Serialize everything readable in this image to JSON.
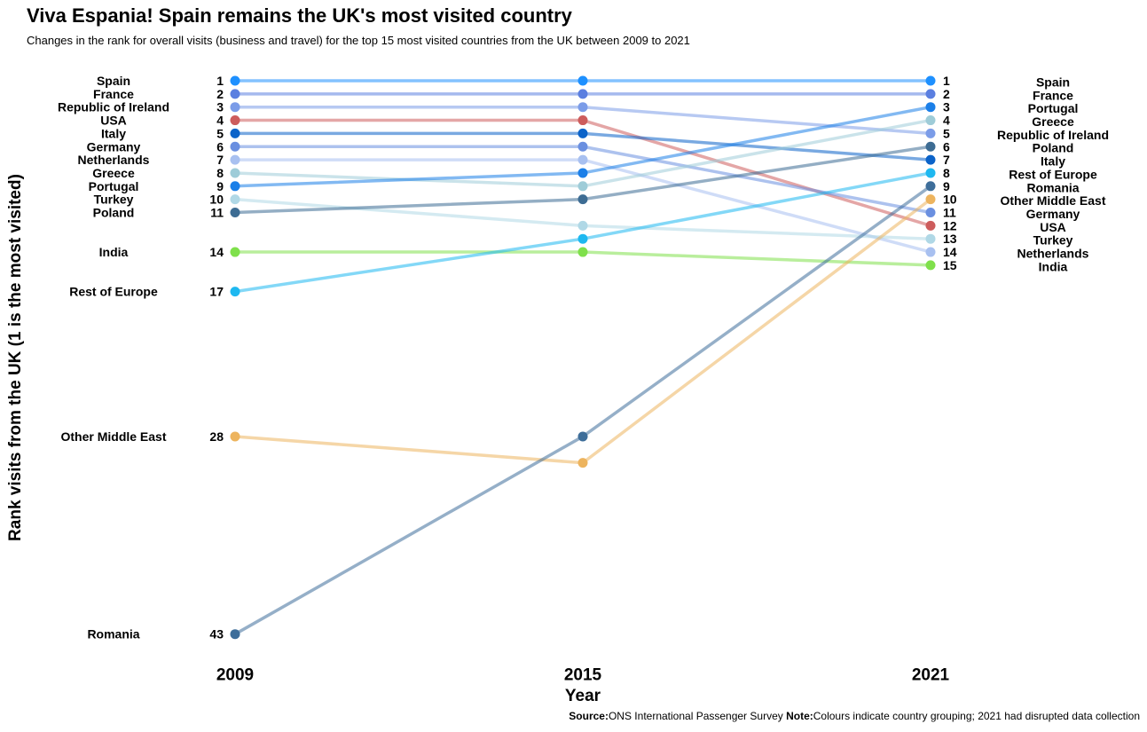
{
  "chart_data": {
    "type": "line",
    "title": "Viva Espania! Spain remains the UK's most visited country",
    "subtitle": "Changes in the rank for overall visits (business and travel) for the top 15 most visited countries from the UK between 2009 to 2021",
    "xlabel": "Year",
    "ylabel": "Rank visits from the UK (1 is the most visited)",
    "x": [
      "2009",
      "2015",
      "2021"
    ],
    "y_reversed": true,
    "grid": false,
    "series": [
      {
        "name": "Spain",
        "values": [
          1,
          1,
          1
        ],
        "color": "#1E90FF"
      },
      {
        "name": "France",
        "values": [
          2,
          2,
          2
        ],
        "color": "#5B7FE0"
      },
      {
        "name": "Republic of Ireland",
        "values": [
          3,
          3,
          5
        ],
        "color": "#7B9CE8"
      },
      {
        "name": "USA",
        "values": [
          4,
          4,
          12
        ],
        "color": "#CD5C5C"
      },
      {
        "name": "Italy",
        "values": [
          5,
          5,
          7
        ],
        "color": "#0B63C9"
      },
      {
        "name": "Germany",
        "values": [
          6,
          6,
          11
        ],
        "color": "#6A8FE0"
      },
      {
        "name": "Netherlands",
        "values": [
          7,
          7,
          14
        ],
        "color": "#A8C0F0"
      },
      {
        "name": "Greece",
        "values": [
          8,
          9,
          4
        ],
        "color": "#9ECCD8"
      },
      {
        "name": "Portugal",
        "values": [
          9,
          8,
          3
        ],
        "color": "#1B7FE8"
      },
      {
        "name": "Turkey",
        "values": [
          10,
          12,
          13
        ],
        "color": "#B0D8E6"
      },
      {
        "name": "Poland",
        "values": [
          11,
          10,
          6
        ],
        "color": "#3D6C93"
      },
      {
        "name": "India",
        "values": [
          14,
          14,
          15
        ],
        "color": "#7FE04B"
      },
      {
        "name": "Rest of Europe",
        "values": [
          17,
          13,
          8
        ],
        "color": "#1EB8F0"
      },
      {
        "name": "Other Middle East",
        "values": [
          28,
          30,
          10
        ],
        "color": "#EDB45E"
      },
      {
        "name": "Romania",
        "values": [
          43,
          28,
          9
        ],
        "color": "#3E6E9A"
      }
    ],
    "right_labels_order": [
      "Spain",
      "France",
      "Portugal",
      "Greece",
      "Republic of Ireland",
      "Poland",
      "Italy",
      "Rest of Europe",
      "Romania",
      "Other Middle East",
      "Germany",
      "USA",
      "Turkey",
      "Netherlands",
      "India"
    ],
    "right_rank_labels": [
      "1",
      "2",
      "3",
      "4",
      "5",
      "6",
      "7",
      "8",
      "9",
      "10",
      "11",
      "12",
      "13",
      "14",
      "15"
    ]
  },
  "caption": {
    "source_label": "Source:",
    "source_text": "ONS International Passenger Survey ",
    "note_label": "Note:",
    "note_text": "Colours indicate country grouping; 2021 had disrupted data collection"
  }
}
